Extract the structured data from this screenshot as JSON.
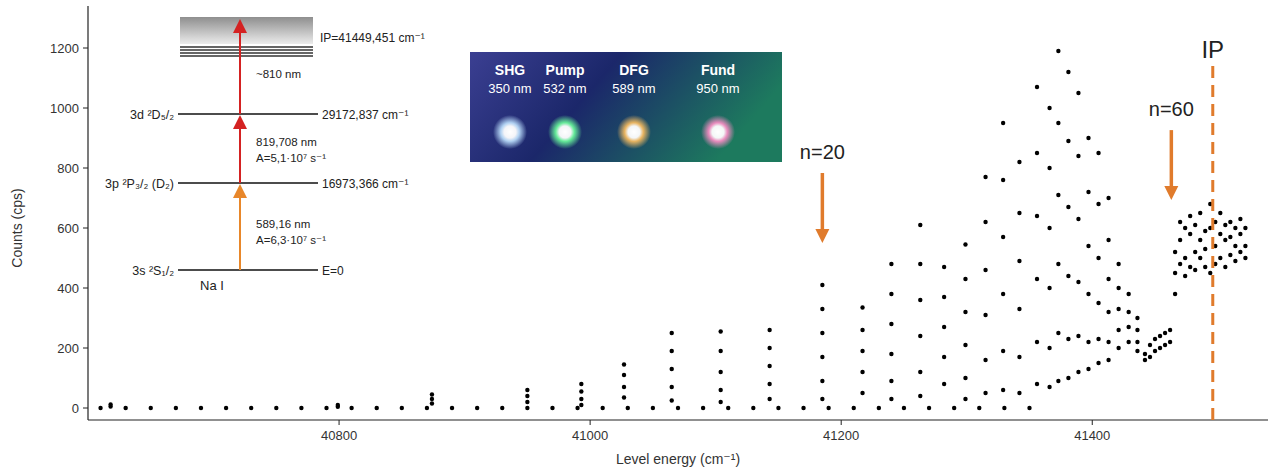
{
  "chart_data": {
    "type": "scatter",
    "x_label": "Level energy (cm⁻¹)",
    "y_label": "Counts (cps)",
    "color": "#000000",
    "marker": "circle",
    "grid": false,
    "xlim": [
      40600,
      41540
    ],
    "xticks": [
      40800,
      41000,
      41200,
      41400
    ],
    "ylim": [
      -40,
      1340
    ],
    "yticks": [
      0,
      200,
      400,
      600,
      800,
      1000,
      1200
    ],
    "x": [
      40610,
      40630,
      40650,
      40670,
      40690,
      40710,
      40730,
      40750,
      40770,
      40790,
      40810,
      40830,
      40850,
      40870,
      40890,
      40910,
      40930,
      40950,
      40970,
      40990,
      41010,
      41030,
      41050,
      41070,
      41090,
      41110,
      41130,
      41150,
      41170,
      41190,
      41210,
      41230,
      41250,
      41270,
      41290,
      41310,
      41330,
      41350,
      40618,
      40618,
      40799,
      40799,
      40874,
      40874,
      40874,
      40950,
      40950,
      40950,
      40993,
      40993,
      40993,
      40993,
      41027,
      41027,
      41027,
      41027,
      41065,
      41065,
      41065,
      41065,
      41065,
      41104,
      41104,
      41104,
      41104,
      41104,
      41143,
      41143,
      41143,
      41143,
      41143,
      41185,
      41185,
      41185,
      41185,
      41185,
      41185,
      41217,
      41217,
      41217,
      41217,
      41217,
      41240,
      41240,
      41240,
      41240,
      41240,
      41240,
      41263,
      41263,
      41263,
      41263,
      41263,
      41263,
      41282,
      41282,
      41282,
      41282,
      41282,
      41299,
      41299,
      41299,
      41299,
      41299,
      41299,
      41315,
      41315,
      41315,
      41315,
      41315,
      41315,
      41329,
      41329,
      41329,
      41329,
      41329,
      41329,
      41342,
      41342,
      41342,
      41342,
      41342,
      41342,
      41356,
      41356,
      41356,
      41356,
      41356,
      41356,
      41366,
      41366,
      41366,
      41366,
      41366,
      41366,
      41373,
      41373,
      41373,
      41373,
      41373,
      41373,
      41381,
      41381,
      41381,
      41381,
      41381,
      41381,
      41389,
      41389,
      41389,
      41389,
      41389,
      41389,
      41397,
      41397,
      41397,
      41397,
      41397,
      41397,
      41405,
      41405,
      41405,
      41405,
      41405,
      41405,
      41413,
      41413,
      41413,
      41413,
      41413,
      41413,
      41421,
      41421,
      41421,
      41421,
      41421,
      41429,
      41429,
      41429,
      41429,
      41436,
      41436,
      41436,
      41436,
      41442,
      41442,
      41446,
      41446,
      41450,
      41450,
      41454,
      41454,
      41458,
      41458,
      41462,
      41462,
      41466,
      41466,
      41466,
      41470,
      41470,
      41470,
      41474,
      41474,
      41474,
      41478,
      41478,
      41478,
      41482,
      41482,
      41482,
      41486,
      41486,
      41486,
      41490,
      41490,
      41490,
      41494,
      41494,
      41494,
      41498,
      41498,
      41498,
      41502,
      41502,
      41502,
      41506,
      41506,
      41506,
      41510,
      41510,
      41510,
      41514,
      41514,
      41514,
      41518,
      41518,
      41518,
      41522,
      41522,
      41522
    ],
    "values": [
      0,
      0,
      0,
      0,
      0,
      0,
      0,
      0,
      0,
      0,
      0,
      0,
      0,
      0,
      0,
      0,
      0,
      0,
      0,
      0,
      0,
      0,
      0,
      0,
      0,
      0,
      0,
      0,
      0,
      0,
      0,
      0,
      0,
      0,
      0,
      0,
      0,
      0,
      12,
      5,
      10,
      4,
      45,
      30,
      15,
      60,
      40,
      20,
      80,
      55,
      30,
      10,
      145,
      110,
      70,
      35,
      250,
      190,
      130,
      70,
      25,
      255,
      190,
      120,
      60,
      20,
      260,
      200,
      140,
      80,
      30,
      410,
      330,
      250,
      170,
      90,
      30,
      335,
      260,
      190,
      120,
      50,
      480,
      380,
      280,
      180,
      90,
      30,
      610,
      480,
      360,
      240,
      120,
      40,
      470,
      370,
      270,
      170,
      80,
      545,
      430,
      320,
      210,
      100,
      30,
      770,
      620,
      460,
      310,
      160,
      50,
      950,
      760,
      570,
      380,
      190,
      60,
      820,
      650,
      490,
      330,
      170,
      50,
      1070,
      850,
      640,
      430,
      220,
      80,
      1000,
      800,
      600,
      400,
      200,
      70,
      1190,
      950,
      710,
      480,
      250,
      90,
      1120,
      890,
      670,
      440,
      230,
      100,
      1050,
      840,
      630,
      420,
      240,
      120,
      900,
      720,
      540,
      380,
      220,
      130,
      850,
      680,
      500,
      350,
      230,
      150,
      700,
      560,
      430,
      320,
      220,
      160,
      480,
      400,
      330,
      260,
      200,
      380,
      320,
      270,
      220,
      300,
      260,
      220,
      190,
      180,
      160,
      210,
      170,
      230,
      190,
      240,
      200,
      250,
      210,
      260,
      220,
      450,
      380,
      520,
      620,
      480,
      560,
      500,
      600,
      440,
      580,
      470,
      640,
      520,
      610,
      460,
      650,
      500,
      560,
      470,
      590,
      530,
      600,
      450,
      680,
      540,
      620,
      480,
      500,
      580,
      650,
      560,
      470,
      610,
      620,
      510,
      570,
      490,
      600,
      540,
      580,
      520,
      630,
      540,
      600,
      500
    ],
    "annotations": [
      {
        "text": "n=20",
        "x": 41185,
        "y": 550
      },
      {
        "text": "n=60",
        "x": 41463,
        "y": 693
      },
      {
        "text": "IP",
        "x": 41496,
        "y": 1140
      }
    ]
  },
  "level_diagram": {
    "atom": "Na I",
    "ionization": "IP=41449,451 cm⁻¹",
    "levels": [
      {
        "name": "3s ²S₁/₂",
        "energy": "E=0"
      },
      {
        "name": "3p ²P₃/₂ (D₂)",
        "energy": "16973,366 cm⁻¹"
      },
      {
        "name": "3d ²D₅/₂",
        "energy": "29172,837 cm⁻¹"
      }
    ],
    "transitions": [
      {
        "wavelength": "589,16 nm",
        "rate": "A=6,3·10⁷ s⁻¹",
        "color": "#e8872a"
      },
      {
        "wavelength": "819,708 nm",
        "rate": "A=5,1·10⁷ s⁻¹",
        "color": "#d42222"
      },
      {
        "wavelength": "~810 nm",
        "color": "#d42222"
      }
    ]
  },
  "photo": {
    "spots": [
      {
        "name": "SHG",
        "wavelength": "350 nm",
        "color": "#bfe2ff"
      },
      {
        "name": "Pump",
        "wavelength": "532 nm",
        "color": "#6dff9e"
      },
      {
        "name": "DFG",
        "wavelength": "589 nm",
        "color": "#ffc060"
      },
      {
        "name": "Fund",
        "wavelength": "950 nm",
        "color": "#ff8fc8"
      }
    ]
  }
}
